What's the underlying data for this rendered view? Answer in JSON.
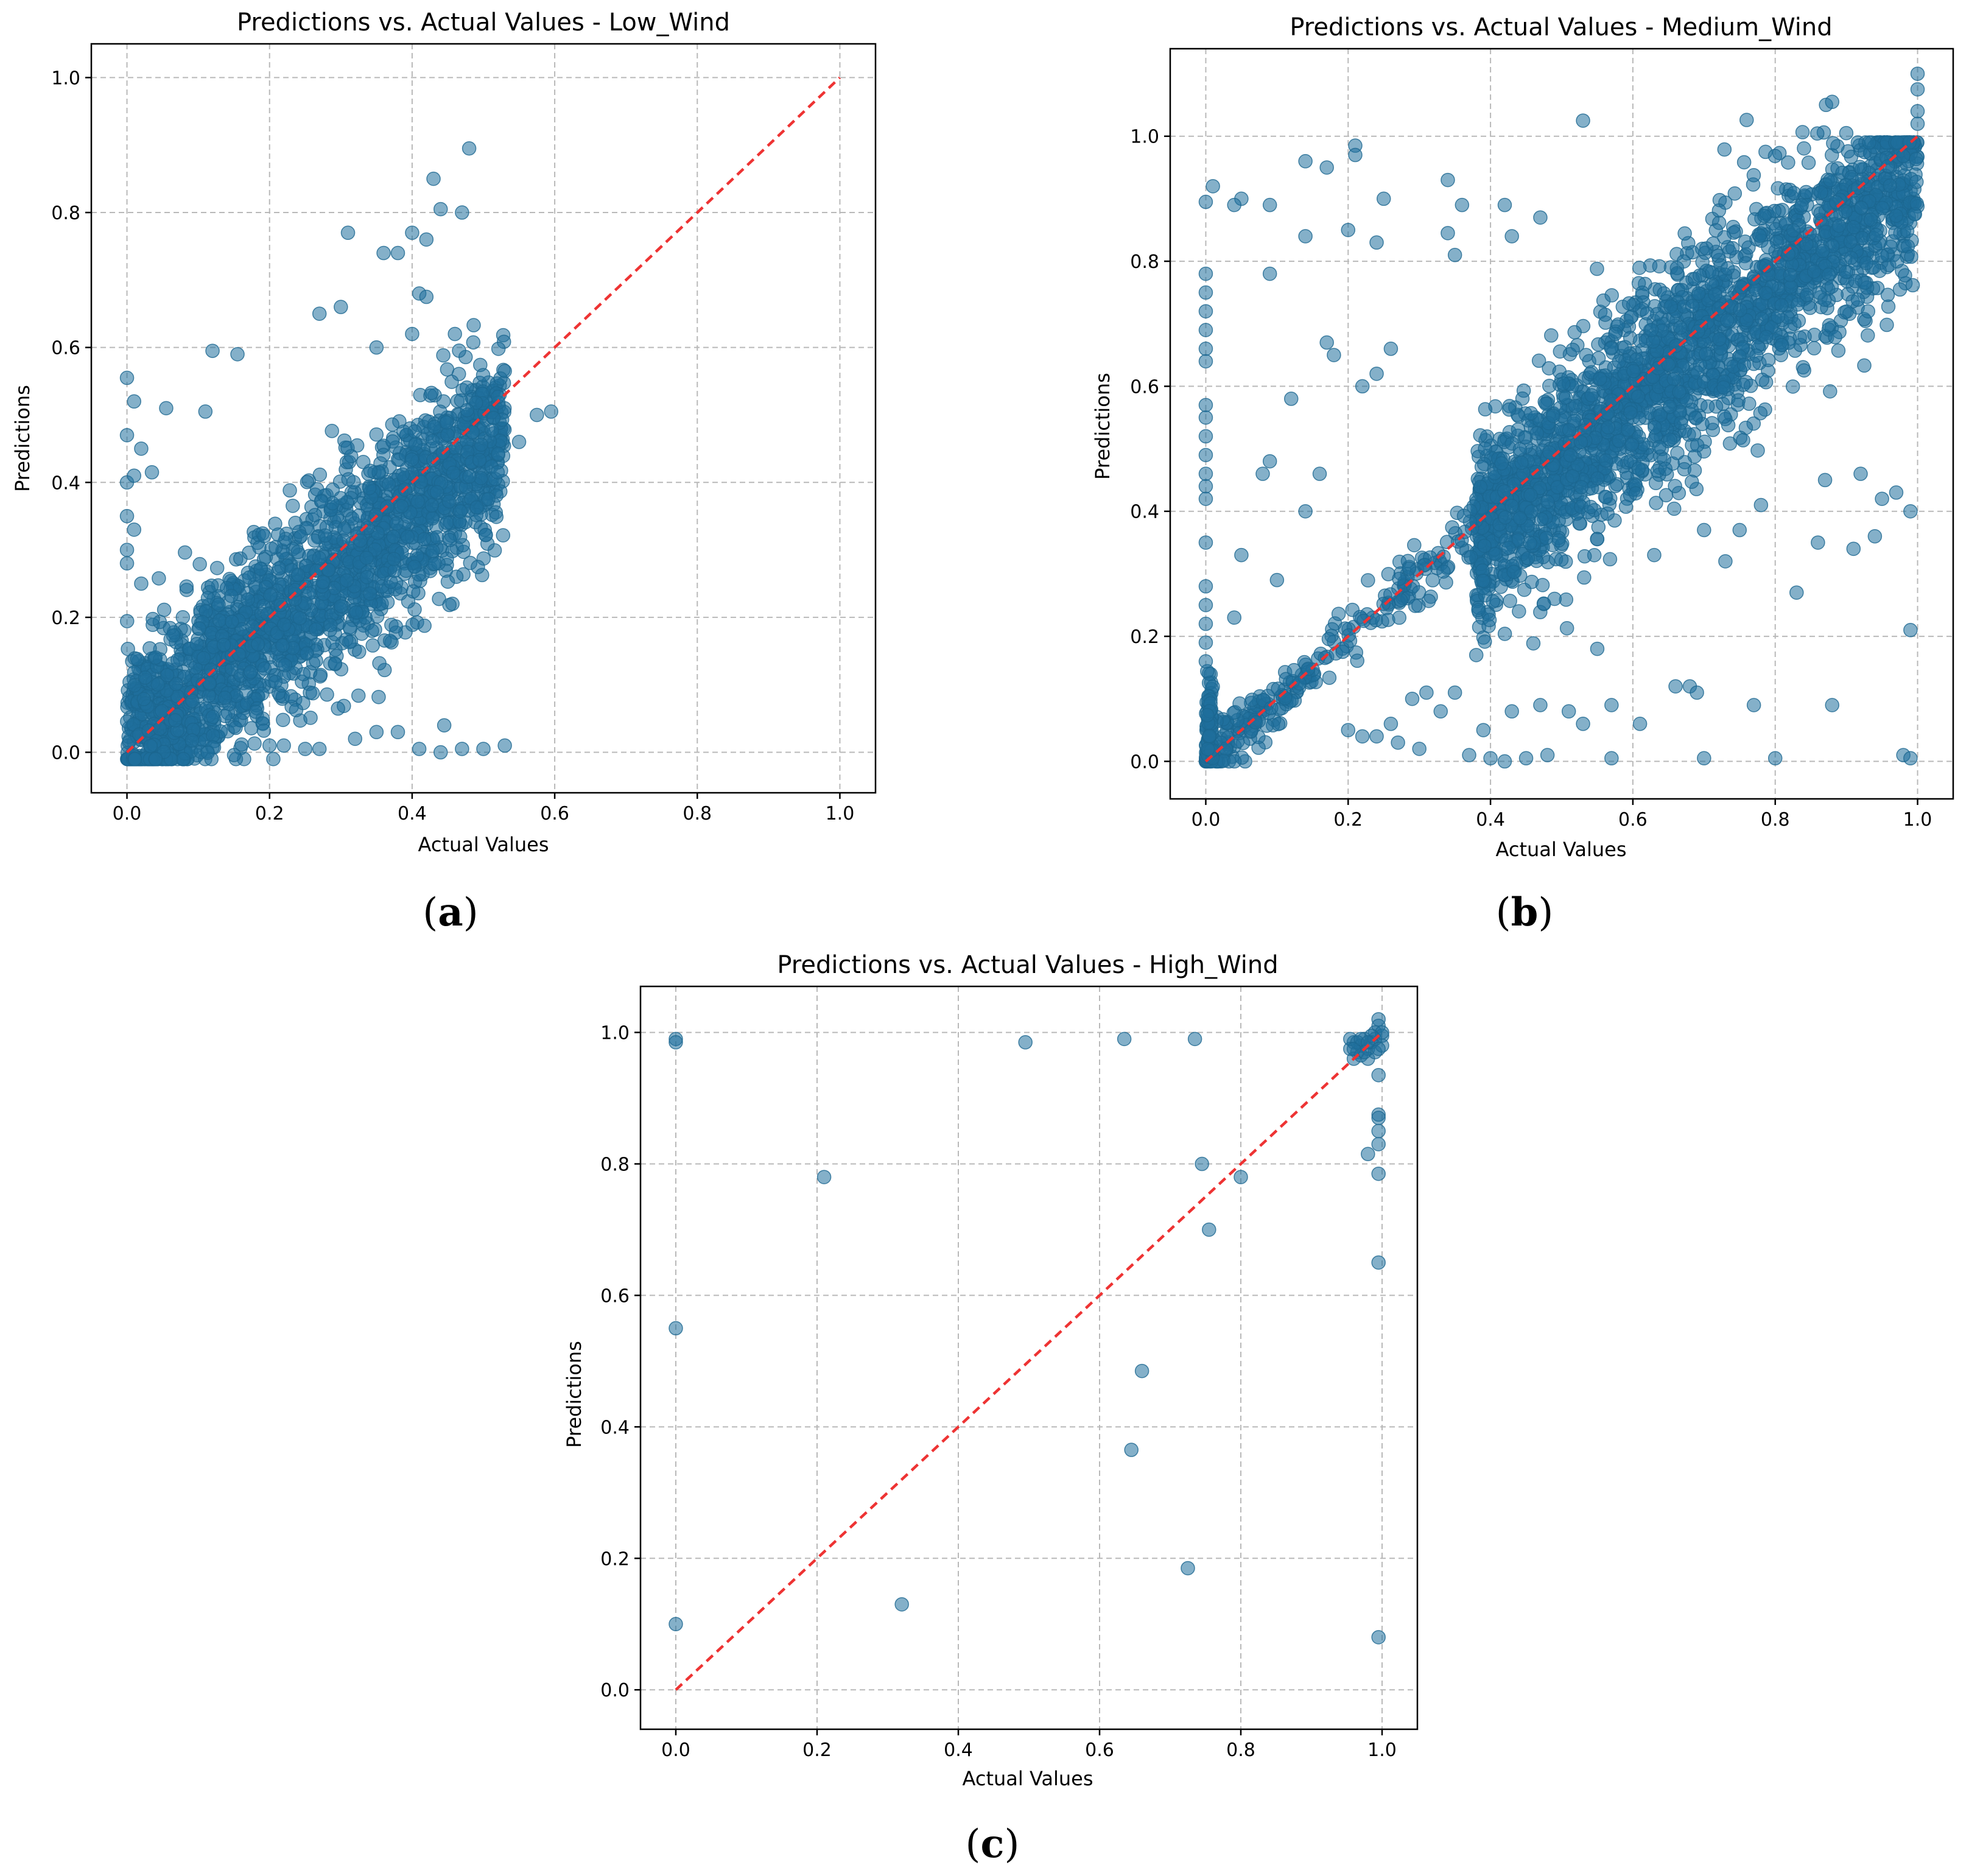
{
  "figure": {
    "captions": [
      "(a)",
      "(b)",
      "(c)"
    ]
  },
  "chart_data": [
    {
      "type": "scatter",
      "title": "Predictions vs. Actual Values  - Low_Wind",
      "xlabel": "Actual Values",
      "ylabel": "Predictions",
      "xlim": [
        -0.05,
        1.05
      ],
      "ylim": [
        -0.06,
        1.05
      ],
      "xticks": [
        0.0,
        0.2,
        0.4,
        0.6,
        0.8,
        1.0
      ],
      "yticks": [
        0.0,
        0.2,
        0.4,
        0.6,
        0.8,
        1.0
      ],
      "grid": true,
      "color": "#1f6f9c",
      "reference_line": {
        "x": [
          0,
          1
        ],
        "y": [
          0,
          1
        ],
        "color": "#ee3333",
        "style": "dashed"
      },
      "caption": "(a)",
      "cloud": {
        "x_range": [
          0.0,
          0.53
        ],
        "slope": 0.88,
        "spread": 0.07,
        "count": 2200
      },
      "points": [
        [
          0.48,
          0.895
        ],
        [
          0.43,
          0.85
        ],
        [
          0.44,
          0.805
        ],
        [
          0.47,
          0.8
        ],
        [
          0.31,
          0.77
        ],
        [
          0.4,
          0.77
        ],
        [
          0.42,
          0.76
        ],
        [
          0.36,
          0.74
        ],
        [
          0.38,
          0.74
        ],
        [
          0.41,
          0.68
        ],
        [
          0.42,
          0.675
        ],
        [
          0.3,
          0.66
        ],
        [
          0.27,
          0.65
        ],
        [
          0.12,
          0.595
        ],
        [
          0.155,
          0.59
        ],
        [
          0.35,
          0.6
        ],
        [
          0.4,
          0.62
        ],
        [
          0.46,
          0.62
        ],
        [
          0.0,
          0.555
        ],
        [
          0.01,
          0.52
        ],
        [
          0.055,
          0.51
        ],
        [
          0.11,
          0.505
        ],
        [
          0.575,
          0.5
        ],
        [
          0.595,
          0.505
        ],
        [
          0.53,
          0.565
        ],
        [
          0.0,
          0.47
        ],
        [
          0.02,
          0.45
        ],
        [
          0.0,
          0.4
        ],
        [
          0.01,
          0.41
        ],
        [
          0.035,
          0.415
        ],
        [
          0.0,
          0.35
        ],
        [
          0.01,
          0.33
        ],
        [
          0.0,
          0.3
        ],
        [
          0.02,
          0.25
        ],
        [
          0.0,
          0.28
        ],
        [
          0.35,
          0.03
        ],
        [
          0.38,
          0.03
        ],
        [
          0.41,
          0.005
        ],
        [
          0.44,
          0.0
        ],
        [
          0.445,
          0.04
        ],
        [
          0.47,
          0.005
        ],
        [
          0.5,
          0.005
        ],
        [
          0.53,
          0.01
        ],
        [
          0.27,
          0.005
        ],
        [
          0.25,
          0.005
        ],
        [
          0.32,
          0.02
        ],
        [
          0.22,
          0.01
        ],
        [
          0.2,
          0.01
        ],
        [
          0.52,
          0.415
        ],
        [
          0.55,
          0.46
        ]
      ]
    },
    {
      "type": "scatter",
      "title": "Predictions vs. Actual Values  - Medium_Wind",
      "xlabel": "Actual Values",
      "ylabel": "Predictions",
      "xlim": [
        -0.05,
        1.05
      ],
      "ylim": [
        -0.06,
        1.14
      ],
      "xticks": [
        0.0,
        0.2,
        0.4,
        0.6,
        0.8,
        1.0
      ],
      "yticks": [
        0.0,
        0.2,
        0.4,
        0.6,
        0.8,
        1.0
      ],
      "grid": true,
      "color": "#1f6f9c",
      "reference_line": {
        "x": [
          0,
          1
        ],
        "y": [
          0,
          1
        ],
        "color": "#ee3333",
        "style": "dashed"
      },
      "caption": "(b)",
      "cloud": {
        "x_range": [
          0.38,
          1.0
        ],
        "slope": 0.95,
        "spread": 0.08,
        "count": 2400
      },
      "points": [
        [
          0.01,
          0.92
        ],
        [
          0.0,
          0.895
        ],
        [
          0.05,
          0.9
        ],
        [
          0.04,
          0.89
        ],
        [
          0.09,
          0.89
        ],
        [
          0.14,
          0.96
        ],
        [
          0.17,
          0.95
        ],
        [
          0.21,
          0.985
        ],
        [
          0.21,
          0.97
        ],
        [
          0.25,
          0.9
        ],
        [
          0.14,
          0.84
        ],
        [
          0.2,
          0.85
        ],
        [
          0.24,
          0.83
        ],
        [
          0.34,
          0.93
        ],
        [
          0.34,
          0.845
        ],
        [
          0.35,
          0.81
        ],
        [
          0.36,
          0.89
        ],
        [
          0.09,
          0.78
        ],
        [
          0.0,
          0.78
        ],
        [
          0.0,
          0.75
        ],
        [
          0.0,
          0.72
        ],
        [
          0.0,
          0.69
        ],
        [
          0.0,
          0.66
        ],
        [
          0.0,
          0.64
        ],
        [
          0.17,
          0.67
        ],
        [
          0.18,
          0.65
        ],
        [
          0.26,
          0.66
        ],
        [
          0.24,
          0.62
        ],
        [
          0.22,
          0.6
        ],
        [
          0.12,
          0.58
        ],
        [
          0.0,
          0.57
        ],
        [
          0.0,
          0.55
        ],
        [
          0.0,
          0.52
        ],
        [
          0.0,
          0.49
        ],
        [
          0.0,
          0.46
        ],
        [
          0.0,
          0.44
        ],
        [
          0.0,
          0.42
        ],
        [
          0.08,
          0.46
        ],
        [
          0.09,
          0.48
        ],
        [
          0.16,
          0.46
        ],
        [
          0.14,
          0.4
        ],
        [
          0.0,
          0.35
        ],
        [
          0.05,
          0.33
        ],
        [
          0.1,
          0.29
        ],
        [
          0.0,
          0.28
        ],
        [
          0.0,
          0.25
        ],
        [
          0.0,
          0.22
        ],
        [
          0.0,
          0.19
        ],
        [
          0.0,
          0.16
        ],
        [
          0.04,
          0.23
        ],
        [
          0.53,
          1.025
        ],
        [
          0.42,
          0.89
        ],
        [
          0.43,
          0.84
        ],
        [
          0.47,
          0.87
        ],
        [
          0.49,
          0.26
        ],
        [
          0.44,
          0.24
        ],
        [
          0.38,
          0.17
        ],
        [
          0.55,
          0.18
        ],
        [
          0.47,
          0.09
        ],
        [
          0.43,
          0.08
        ],
        [
          0.39,
          0.05
        ],
        [
          0.51,
          0.08
        ],
        [
          0.57,
          0.09
        ],
        [
          0.53,
          0.06
        ],
        [
          0.61,
          0.06
        ],
        [
          0.66,
          0.12
        ],
        [
          0.68,
          0.12
        ],
        [
          0.69,
          0.11
        ],
        [
          0.77,
          0.09
        ],
        [
          0.88,
          0.09
        ],
        [
          0.83,
          0.27
        ],
        [
          0.73,
          0.32
        ],
        [
          0.63,
          0.33
        ],
        [
          0.7,
          0.37
        ],
        [
          0.75,
          0.37
        ],
        [
          0.78,
          0.41
        ],
        [
          0.87,
          0.45
        ],
        [
          0.92,
          0.46
        ],
        [
          0.97,
          0.43
        ],
        [
          0.99,
          0.4
        ],
        [
          0.99,
          0.21
        ],
        [
          0.98,
          0.01
        ],
        [
          0.7,
          0.005
        ],
        [
          0.8,
          0.005
        ],
        [
          0.57,
          0.005
        ],
        [
          0.48,
          0.01
        ],
        [
          0.45,
          0.005
        ],
        [
          0.4,
          0.005
        ],
        [
          0.37,
          0.01
        ],
        [
          0.42,
          0.0
        ],
        [
          0.3,
          0.02
        ],
        [
          0.27,
          0.03
        ],
        [
          0.24,
          0.04
        ],
        [
          0.2,
          0.05
        ],
        [
          0.29,
          0.1
        ],
        [
          0.33,
          0.08
        ],
        [
          0.31,
          0.11
        ],
        [
          0.35,
          0.11
        ],
        [
          0.26,
          0.06
        ],
        [
          0.22,
          0.04
        ],
        [
          0.88,
          1.055
        ],
        [
          1.0,
          1.1
        ],
        [
          1.0,
          1.075
        ],
        [
          1.0,
          1.04
        ],
        [
          1.0,
          1.02
        ],
        [
          0.91,
          0.34
        ],
        [
          0.86,
          0.35
        ],
        [
          0.95,
          0.42
        ],
        [
          0.94,
          0.36
        ],
        [
          0.99,
          0.005
        ]
      ],
      "line_points": {
        "x_range": [
          0.0,
          0.38
        ],
        "spread": 0.025,
        "count": 260
      }
    },
    {
      "type": "scatter",
      "title": "Predictions vs. Actual Values  - High_Wind",
      "xlabel": "Actual Values",
      "ylabel": "Predictions",
      "xlim": [
        -0.05,
        1.05
      ],
      "ylim": [
        -0.06,
        1.07
      ],
      "xticks": [
        0.0,
        0.2,
        0.4,
        0.6,
        0.8,
        1.0
      ],
      "yticks": [
        0.0,
        0.2,
        0.4,
        0.6,
        0.8,
        1.0
      ],
      "grid": true,
      "color": "#1f6f9c",
      "reference_line": {
        "x": [
          0,
          1
        ],
        "y": [
          0,
          1
        ],
        "color": "#ee3333",
        "style": "dashed"
      },
      "caption": "(c)",
      "points": [
        [
          0.0,
          0.99
        ],
        [
          0.0,
          0.985
        ],
        [
          0.0,
          0.55
        ],
        [
          0.0,
          0.1
        ],
        [
          0.21,
          0.78
        ],
        [
          0.32,
          0.13
        ],
        [
          0.495,
          0.985
        ],
        [
          0.635,
          0.99
        ],
        [
          0.735,
          0.99
        ],
        [
          0.745,
          0.8
        ],
        [
          0.755,
          0.7
        ],
        [
          0.8,
          0.78
        ],
        [
          0.66,
          0.485
        ],
        [
          0.645,
          0.365
        ],
        [
          0.725,
          0.185
        ],
        [
          0.98,
          0.815
        ],
        [
          0.995,
          0.785
        ],
        [
          0.995,
          0.65
        ],
        [
          0.995,
          0.08
        ],
        [
          0.995,
          0.935
        ],
        [
          0.995,
          0.875
        ],
        [
          0.995,
          0.85
        ],
        [
          0.995,
          0.83
        ],
        [
          0.995,
          0.87
        ],
        [
          0.995,
          1.02
        ],
        [
          0.995,
          1.01
        ],
        [
          0.99,
          1.0
        ],
        [
          1.0,
          0.995
        ],
        [
          0.96,
          0.985
        ],
        [
          0.955,
          0.975
        ],
        [
          0.965,
          0.97
        ],
        [
          0.97,
          0.98
        ],
        [
          0.975,
          0.99
        ],
        [
          0.98,
          0.975
        ],
        [
          0.985,
          0.985
        ],
        [
          0.96,
          0.96
        ],
        [
          0.97,
          0.965
        ],
        [
          0.98,
          0.96
        ],
        [
          0.99,
          0.97
        ],
        [
          1.0,
          0.98
        ],
        [
          0.955,
          0.99
        ],
        [
          0.965,
          0.985
        ],
        [
          0.975,
          0.97
        ],
        [
          0.99,
          0.99
        ],
        [
          1.0,
          1.0
        ],
        [
          0.985,
          0.995
        ],
        [
          0.995,
          0.975
        ],
        [
          0.96,
          0.975
        ],
        [
          0.97,
          0.99
        ],
        [
          0.98,
          0.985
        ]
      ]
    }
  ]
}
